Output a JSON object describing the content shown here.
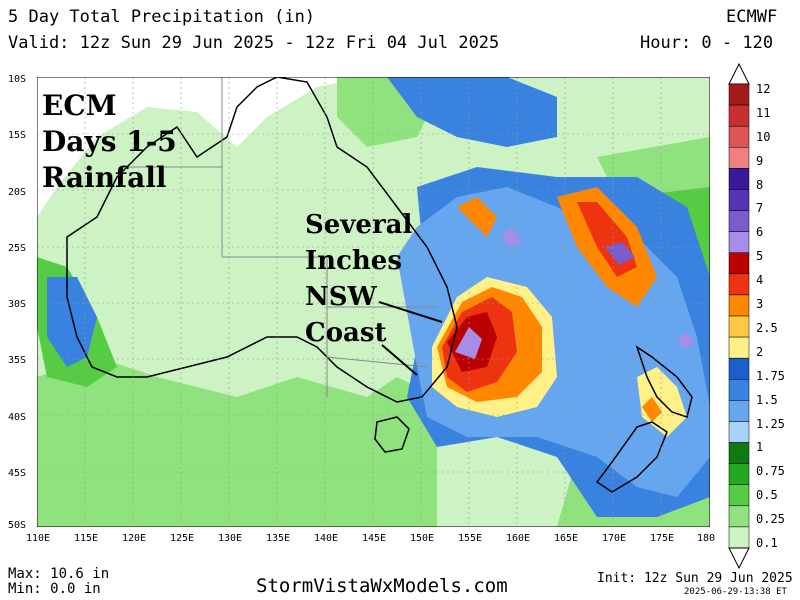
{
  "header": {
    "title": "5 Day Total Precipitation (in)",
    "valid": "Valid: 12z Sun 29 Jun 2025 - 12z Fri 04 Jul 2025",
    "model": "ECMWF",
    "hours": "Hour: 0 - 120"
  },
  "map": {
    "lat_labels": [
      "10S",
      "15S",
      "20S",
      "25S",
      "30S",
      "35S",
      "40S",
      "45S",
      "50S"
    ],
    "lon_labels": [
      "110E",
      "115E",
      "120E",
      "125E",
      "130E",
      "135E",
      "140E",
      "145E",
      "150E",
      "155E",
      "160E",
      "165E",
      "170E",
      "175E",
      "180"
    ],
    "annotation_left": [
      "ECM",
      "Days 1-5",
      "Rainfall"
    ],
    "annotation_right": [
      "Several",
      "Inches",
      "NSW",
      "Coast"
    ]
  },
  "colorbar": {
    "levels": [
      "12",
      "11",
      "10",
      "9",
      "8",
      "7",
      "6",
      "5",
      "4",
      "3",
      "2.5",
      "2",
      "1.75",
      "1.5",
      "1.25",
      "1",
      "0.75",
      "0.5",
      "0.25",
      "0.1"
    ],
    "colors": [
      "#a31c1c",
      "#c83030",
      "#dd5555",
      "#ee8080",
      "#3a1899",
      "#5534b5",
      "#7a5ccc",
      "#a58de8",
      "#bb0000",
      "#ee3311",
      "#ff8800",
      "#ffc844",
      "#fff088",
      "#1a5fcc",
      "#3a82e0",
      "#66a6ee",
      "#a8d2f8",
      "#0f7a0f",
      "#22a822",
      "#55cc44",
      "#8fe27d",
      "#cdf2c4"
    ]
  },
  "footer": {
    "max": "Max: 10.6 in",
    "min": "Min: 0.0 in",
    "site": "StormVistaWxModels.com",
    "init": "Init: 12z Sun 29 Jun 2025",
    "stamp": "2025-06-29-13:38 ET"
  }
}
